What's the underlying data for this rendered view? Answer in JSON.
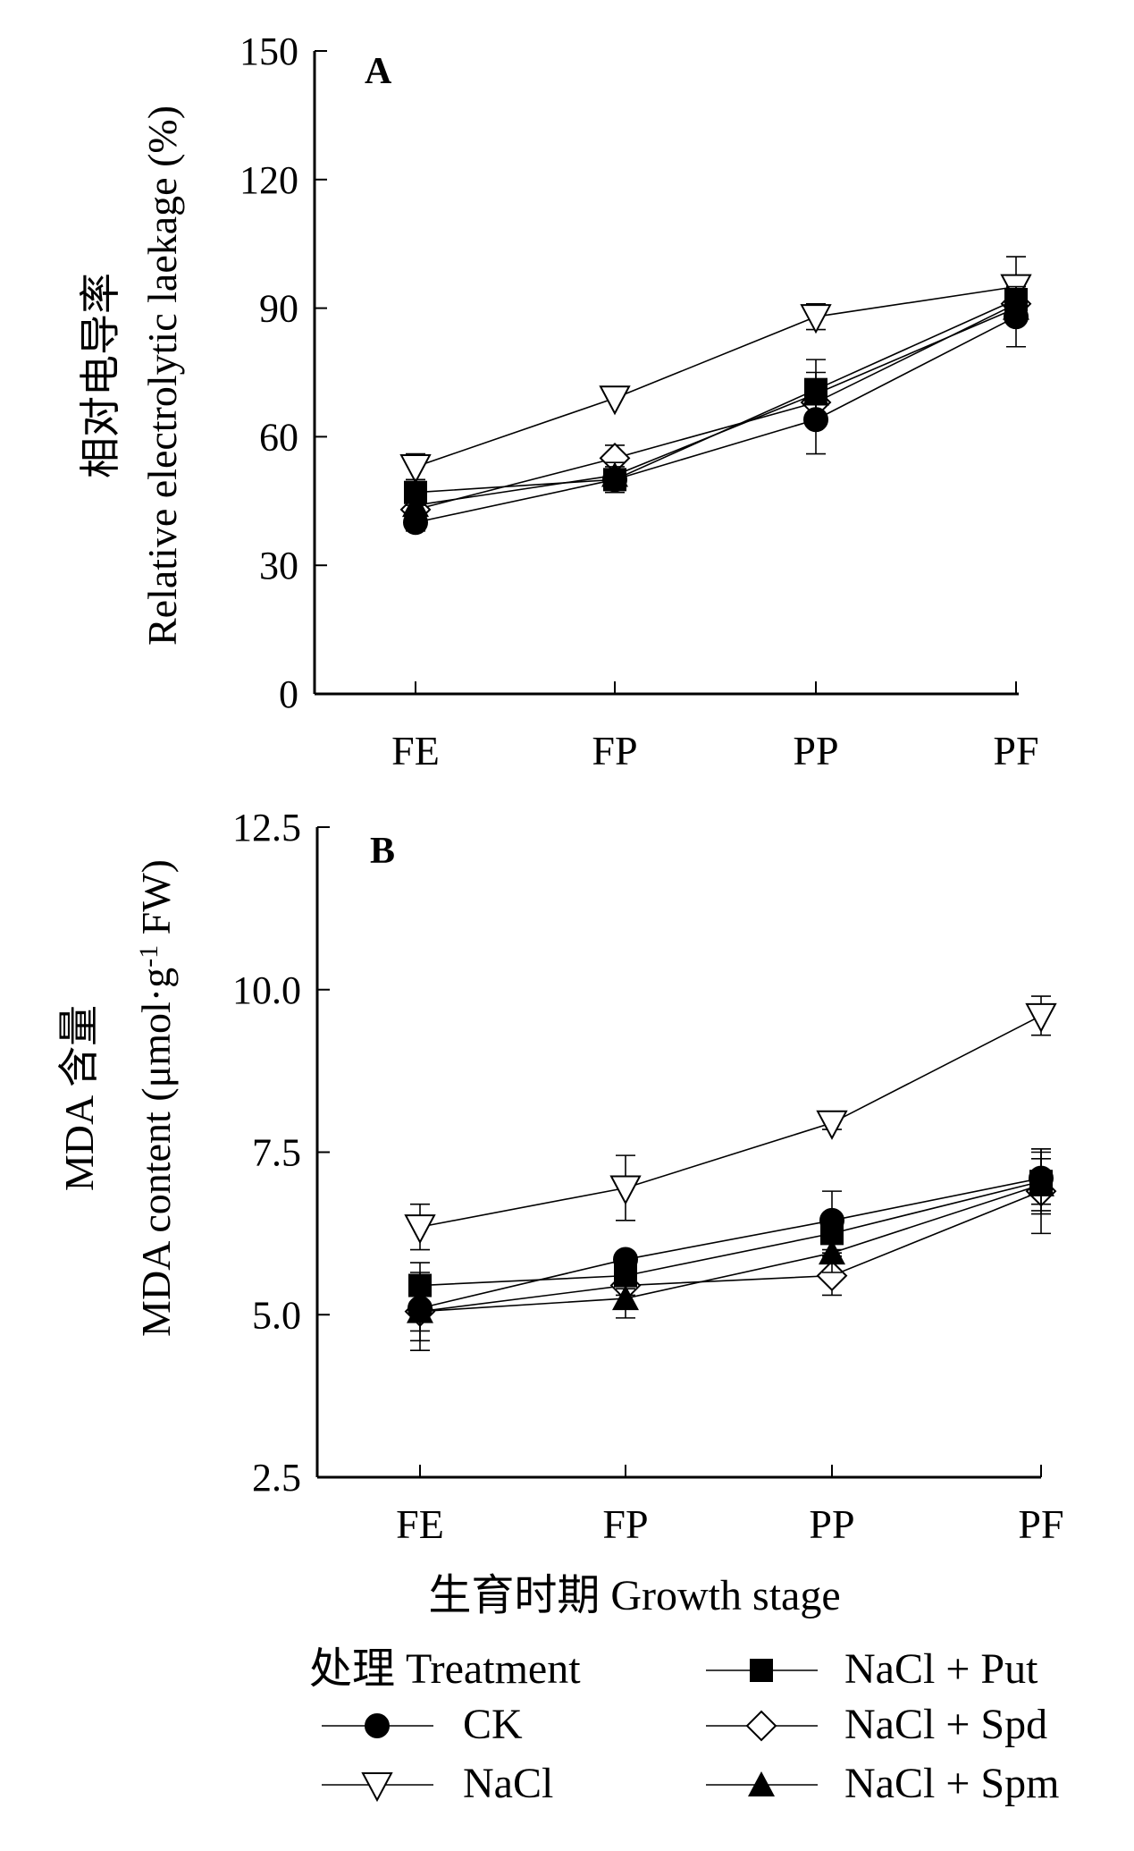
{
  "chart_data": [
    {
      "type": "line",
      "panel_label": "A",
      "ylabel_cn": "相对电导率",
      "ylabel_en": "Relative electrolytic laekage (%)",
      "categories": [
        "FE",
        "FP",
        "PP",
        "PF"
      ],
      "ylim": [
        0,
        150
      ],
      "yticks": [
        "0",
        "30",
        "60",
        "90",
        "120",
        "150"
      ],
      "series": [
        {
          "name": "CK",
          "marker": "circle-filled",
          "values": [
            40,
            50,
            64,
            88
          ],
          "errors": [
            2,
            2,
            8,
            7
          ]
        },
        {
          "name": "NaCl",
          "marker": "triangle-down-open",
          "values": [
            53,
            69,
            88,
            95
          ],
          "errors": [
            3,
            0,
            3,
            7
          ]
        },
        {
          "name": "NaCl + Put",
          "marker": "square-filled",
          "values": [
            47,
            50,
            71,
            92
          ],
          "errors": [
            3,
            3,
            7,
            3
          ]
        },
        {
          "name": "NaCl + Spd",
          "marker": "diamond-open",
          "values": [
            43,
            55,
            68,
            91
          ],
          "errors": [
            2,
            3,
            4,
            3
          ]
        },
        {
          "name": "NaCl + Spm",
          "marker": "triangle-up-filled",
          "values": [
            44,
            51,
            70,
            90
          ],
          "errors": [
            2,
            3,
            5,
            3
          ]
        }
      ]
    },
    {
      "type": "line",
      "panel_label": "B",
      "ylabel_cn": "MDA 含量",
      "ylabel_en": "MDA content (μmol·g",
      "ylabel_sup": "-1",
      "ylabel_end": " FW)",
      "categories": [
        "FE",
        "FP",
        "PP",
        "PF"
      ],
      "ylim": [
        2.5,
        12.5
      ],
      "yticks": [
        "2.5",
        "5.0",
        "7.5",
        "10.0",
        "12.5"
      ],
      "series": [
        {
          "name": "CK",
          "marker": "circle-filled",
          "values": [
            5.1,
            5.85,
            6.45,
            7.1
          ],
          "errors": [
            0.5,
            0.1,
            0.45,
            0.4
          ]
        },
        {
          "name": "NaCl",
          "marker": "triangle-down-open",
          "values": [
            6.35,
            6.95,
            7.95,
            9.6
          ],
          "errors": [
            0.35,
            0.5,
            0.1,
            0.3
          ]
        },
        {
          "name": "NaCl + Put",
          "marker": "square-filled",
          "values": [
            5.45,
            5.6,
            6.25,
            7.05
          ],
          "errors": [
            0.35,
            0.2,
            0.3,
            0.5
          ]
        },
        {
          "name": "NaCl + Spd",
          "marker": "diamond-open",
          "values": [
            5.05,
            5.45,
            5.6,
            6.9
          ],
          "errors": [
            0.3,
            0.15,
            0.3,
            0.65
          ]
        },
        {
          "name": "NaCl + Spm",
          "marker": "triangle-up-filled",
          "values": [
            5.05,
            5.25,
            5.95,
            7.0
          ],
          "errors": [
            0.6,
            0.3,
            0.3,
            0.4
          ]
        }
      ]
    }
  ],
  "xlabel": "生育时期 Growth stage",
  "legend": {
    "title": "处理 Treatment",
    "items": [
      {
        "name": "CK",
        "marker": "circle-filled"
      },
      {
        "name": "NaCl",
        "marker": "triangle-down-open"
      },
      {
        "name": "NaCl + Put",
        "marker": "square-filled"
      },
      {
        "name": "NaCl + Spd",
        "marker": "diamond-open"
      },
      {
        "name": "NaCl + Spm",
        "marker": "triangle-up-filled"
      }
    ]
  }
}
